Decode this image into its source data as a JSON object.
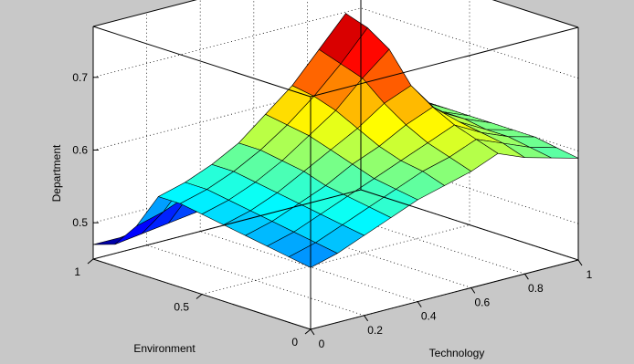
{
  "chart_data": {
    "type": "surface",
    "xlabel": "Technology",
    "ylabel": "Environment",
    "zlabel": "Department",
    "xlim": [
      0,
      1
    ],
    "ylim": [
      0,
      1
    ],
    "zlim": [
      0.45,
      0.77
    ],
    "x_ticks": [
      "0",
      "0.2",
      "0.4",
      "0.6",
      "0.8",
      "1"
    ],
    "y_ticks": [
      "0",
      "0.5",
      "1"
    ],
    "z_ticks": [
      "0.5",
      "0.6",
      "0.7"
    ],
    "grid": true,
    "colormap": "jet",
    "x": [
      0,
      0.1,
      0.2,
      0.3,
      0.4,
      0.5,
      0.6,
      0.7,
      0.8,
      0.9,
      1
    ],
    "y": [
      0,
      0.1,
      0.2,
      0.3,
      0.4,
      0.5,
      0.6,
      0.7,
      0.8,
      0.9,
      1
    ],
    "z": [
      [
        0.535,
        0.545,
        0.56,
        0.575,
        0.59,
        0.6,
        0.61,
        0.625,
        0.61,
        0.6,
        0.59
      ],
      [
        0.54,
        0.55,
        0.565,
        0.58,
        0.595,
        0.61,
        0.62,
        0.635,
        0.62,
        0.605,
        0.595
      ],
      [
        0.545,
        0.555,
        0.57,
        0.585,
        0.6,
        0.615,
        0.63,
        0.645,
        0.625,
        0.61,
        0.6
      ],
      [
        0.55,
        0.56,
        0.575,
        0.59,
        0.61,
        0.625,
        0.645,
        0.66,
        0.63,
        0.61,
        0.6
      ],
      [
        0.555,
        0.565,
        0.58,
        0.6,
        0.62,
        0.64,
        0.665,
        0.68,
        0.635,
        0.615,
        0.6
      ],
      [
        0.56,
        0.57,
        0.585,
        0.605,
        0.63,
        0.655,
        0.69,
        0.72,
        0.64,
        0.615,
        0.6
      ],
      [
        0.565,
        0.575,
        0.59,
        0.61,
        0.635,
        0.665,
        0.7,
        0.74,
        0.645,
        0.62,
        0.6
      ],
      [
        0.565,
        0.575,
        0.59,
        0.61,
        0.64,
        0.67,
        0.71,
        0.75,
        0.645,
        0.62,
        0.6
      ],
      [
        0.515,
        0.525,
        0.54,
        0.555,
        0.57,
        0.585,
        0.6,
        0.615,
        0.55,
        0.52,
        0.5
      ],
      [
        0.48,
        0.485,
        0.49,
        0.495,
        0.5,
        0.505,
        0.51,
        0.515,
        0.49,
        0.48,
        0.475
      ],
      [
        0.47,
        0.47,
        0.475,
        0.48,
        0.48,
        0.485,
        0.49,
        0.49,
        0.48,
        0.47,
        0.465
      ]
    ]
  }
}
